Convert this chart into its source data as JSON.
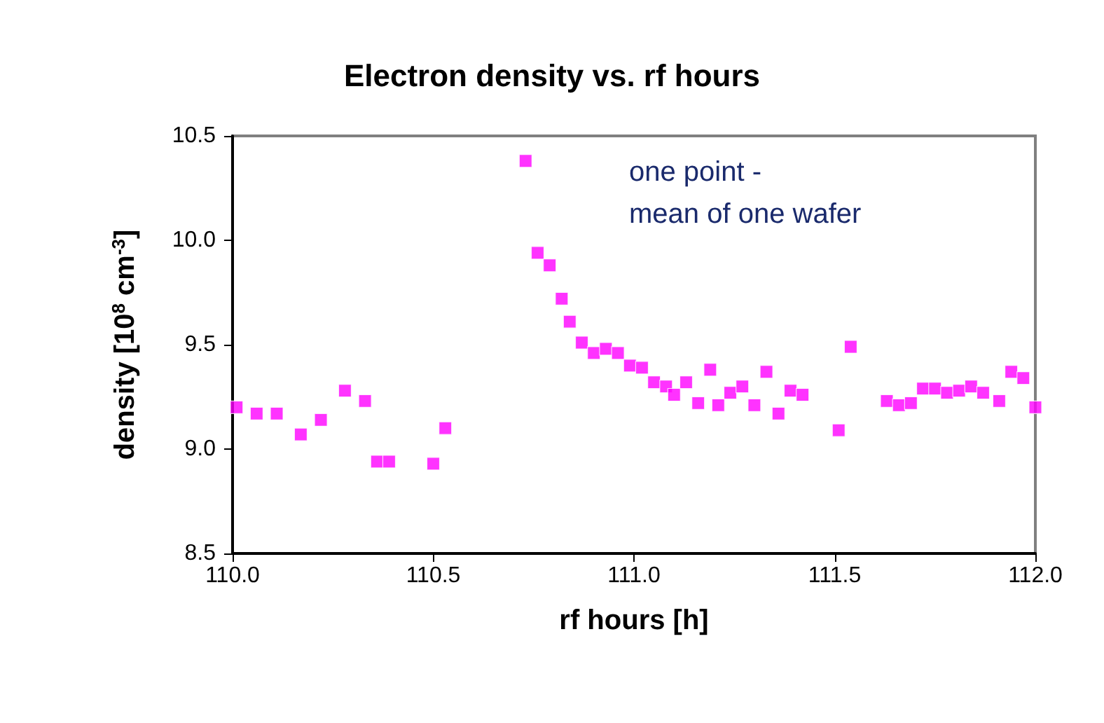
{
  "chart_data": {
    "type": "scatter",
    "title": "Electron density vs. rf hours",
    "xlabel": "rf hours [h]",
    "ylabel": "density [10$^{8}$ cm$^{-3}$]",
    "annotations": [
      "one point -\nmean of one wafer"
    ],
    "x": [
      110.01,
      110.06,
      110.11,
      110.17,
      110.22,
      110.28,
      110.33,
      110.36,
      110.39,
      110.5,
      110.53,
      110.73,
      110.76,
      110.79,
      110.82,
      110.84,
      110.87,
      110.9,
      110.93,
      110.96,
      110.99,
      111.02,
      111.05,
      111.08,
      111.1,
      111.13,
      111.16,
      111.19,
      111.21,
      111.24,
      111.27,
      111.3,
      111.33,
      111.36,
      111.39,
      111.42,
      111.51,
      111.54,
      111.63,
      111.66,
      111.69,
      111.72,
      111.75,
      111.78,
      111.81,
      111.84,
      111.87,
      111.91,
      111.94,
      111.97,
      112.0
    ],
    "values": [
      9.2,
      9.17,
      9.17,
      9.07,
      9.14,
      9.28,
      9.23,
      8.94,
      8.94,
      8.93,
      9.1,
      10.38,
      9.94,
      9.88,
      9.72,
      9.61,
      9.51,
      9.46,
      9.48,
      9.46,
      9.4,
      9.39,
      9.32,
      9.3,
      9.26,
      9.32,
      9.22,
      9.38,
      9.21,
      9.27,
      9.3,
      9.21,
      9.37,
      9.17,
      9.28,
      9.26,
      9.09,
      9.49,
      9.23,
      9.21,
      9.22,
      9.29,
      9.29,
      9.27,
      9.28,
      9.3,
      9.27,
      9.23,
      9.37,
      9.34,
      9.2
    ],
    "color": "#ff00ff",
    "marker": "square",
    "grid": false,
    "xlim": [
      110,
      112
    ],
    "xticks": [
      {
        "value": 110,
        "label": "110.0"
      },
      {
        "value": 110.5,
        "label": "110.5"
      },
      {
        "value": 111,
        "label": "111.0"
      },
      {
        "value": 111.5,
        "label": "111.5"
      },
      {
        "value": 112,
        "label": "112.0"
      }
    ],
    "ylim": [
      8.5,
      10.5
    ],
    "yticks": [
      {
        "value": 8.5,
        "label": "8.5"
      },
      {
        "value": 9,
        "label": "9.0"
      },
      {
        "value": 9.5,
        "label": "9.5"
      },
      {
        "value": 10,
        "label": "10.0"
      },
      {
        "value": 10.5,
        "label": "10.5"
      }
    ]
  }
}
